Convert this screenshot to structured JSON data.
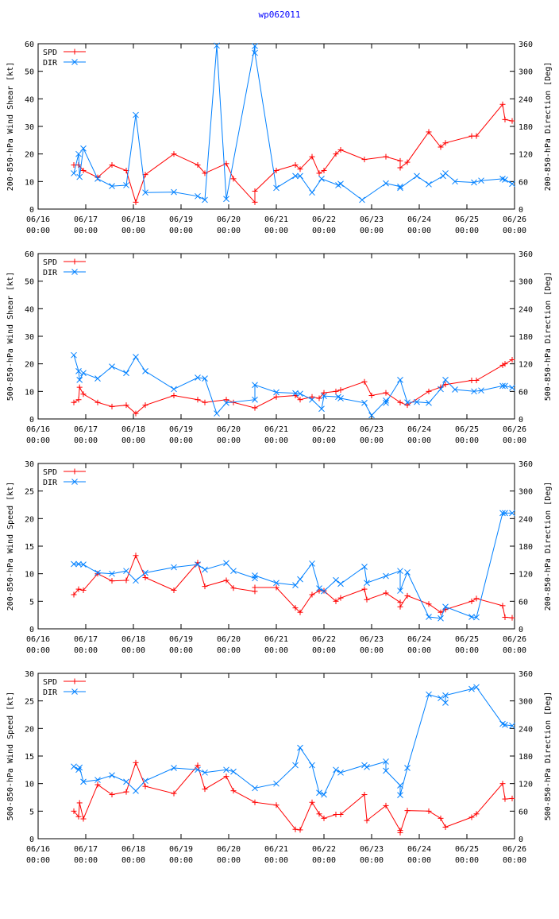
{
  "title": "wp062011",
  "x_axis": {
    "min": 0,
    "max": 10,
    "ticks": [
      {
        "v": 0,
        "date": "06/16",
        "time": "00:00"
      },
      {
        "v": 1,
        "date": "06/17",
        "time": "00:00"
      },
      {
        "v": 2,
        "date": "06/18",
        "time": "00:00"
      },
      {
        "v": 3,
        "date": "06/19",
        "time": "00:00"
      },
      {
        "v": 4,
        "date": "06/20",
        "time": "00:00"
      },
      {
        "v": 5,
        "date": "06/21",
        "time": "00:00"
      },
      {
        "v": 6,
        "date": "06/22",
        "time": "00:00"
      },
      {
        "v": 7,
        "date": "06/23",
        "time": "00:00"
      },
      {
        "v": 8,
        "date": "06/24",
        "time": "00:00"
      },
      {
        "v": 9,
        "date": "06/25",
        "time": "00:00"
      },
      {
        "v": 10,
        "date": "06/26",
        "time": "00:00"
      }
    ]
  },
  "colors": {
    "spd": "#ff0000",
    "dir": "#0080ff"
  },
  "chart_data": [
    {
      "type": "line",
      "ylabel": "200-850-hPa Wind Shear [kt]",
      "y2label": "200-850-hPa Direction [Deg]",
      "ylim": [
        0,
        60
      ],
      "yticks": [
        0,
        10,
        20,
        30,
        40,
        50,
        60
      ],
      "y2lim": [
        0,
        360
      ],
      "y2ticks": [
        0,
        60,
        120,
        180,
        240,
        300,
        360
      ],
      "legend": "top-left",
      "series": [
        {
          "name": "SPD",
          "axis": "left",
          "marker": "plus",
          "color_key": "spd",
          "x": [
            0.75,
            0.85,
            0.95,
            1.25,
            1.55,
            1.85,
            2.05,
            2.25,
            2.85,
            3.35,
            3.5,
            3.95,
            4.1,
            4.55,
            4.55,
            5.0,
            5.4,
            5.5,
            5.75,
            5.9,
            6.0,
            6.25,
            6.35,
            6.85,
            7.3,
            7.6,
            7.6,
            7.75,
            8.2,
            8.45,
            8.55,
            9.1,
            9.2,
            9.75,
            9.8,
            9.95
          ],
          "y": [
            16,
            16,
            14,
            11.5,
            16,
            14,
            2.5,
            12.5,
            20,
            16,
            13,
            16.5,
            11,
            2.5,
            6.5,
            14,
            16,
            14.5,
            19,
            13,
            14,
            20,
            21.5,
            18,
            19,
            17.5,
            15,
            17,
            28,
            22.5,
            24,
            26.5,
            26.5,
            38,
            32.5,
            32
          ]
        },
        {
          "name": "DIR",
          "axis": "right",
          "marker": "cross",
          "color_key": "dir",
          "x": [
            0.75,
            0.85,
            0.87,
            0.95,
            1.25,
            1.55,
            1.85,
            2.05,
            2.25,
            2.85,
            3.35,
            3.5,
            3.75,
            3.95,
            4.55,
            4.55,
            5.0,
            5.4,
            5.5,
            5.75,
            5.95,
            6.3,
            6.35,
            6.8,
            7.3,
            7.6,
            7.6,
            7.95,
            8.2,
            8.5,
            8.55,
            8.75,
            9.15,
            9.3,
            9.75,
            9.8,
            9.95
          ],
          "y": [
            78,
            120,
            70,
            132,
            66,
            50,
            52,
            205,
            36,
            37,
            28,
            20,
            356,
            22,
            355,
            340,
            46,
            72,
            72,
            36,
            66,
            52,
            55,
            20,
            56,
            49,
            46,
            72,
            54,
            72,
            78,
            60,
            58,
            62,
            66,
            64,
            55
          ]
        }
      ]
    },
    {
      "type": "line",
      "ylabel": "500-850-hPa Wind Shear [kt]",
      "y2label": "500-850-hPa Direction [Deg]",
      "ylim": [
        0,
        60
      ],
      "yticks": [
        0,
        10,
        20,
        30,
        40,
        50,
        60
      ],
      "y2lim": [
        0,
        360
      ],
      "y2ticks": [
        0,
        60,
        120,
        180,
        240,
        300,
        360
      ],
      "legend": "top-left",
      "series": [
        {
          "name": "SPD",
          "axis": "left",
          "marker": "plus",
          "color_key": "spd",
          "x": [
            0.75,
            0.85,
            0.87,
            0.95,
            1.25,
            1.55,
            1.85,
            2.05,
            2.25,
            2.85,
            3.35,
            3.5,
            3.95,
            4.1,
            4.55,
            5.0,
            5.4,
            5.5,
            5.75,
            5.9,
            6.0,
            6.25,
            6.35,
            6.85,
            7.0,
            7.3,
            7.6,
            7.75,
            8.2,
            8.45,
            8.55,
            9.1,
            9.2,
            9.75,
            9.8,
            9.95
          ],
          "y": [
            6,
            7,
            11.5,
            9,
            6,
            4.5,
            5,
            2,
            5,
            8.5,
            7,
            6,
            7,
            6,
            4,
            8,
            8.5,
            7,
            8,
            7.5,
            9.5,
            10,
            10.5,
            13.5,
            8.5,
            9.5,
            6,
            5,
            10,
            11.5,
            12.5,
            14,
            14,
            19.5,
            20,
            21.5
          ]
        },
        {
          "name": "DIR",
          "axis": "right",
          "marker": "cross",
          "color_key": "dir",
          "x": [
            0.75,
            0.85,
            0.87,
            0.95,
            1.25,
            1.55,
            1.85,
            2.05,
            2.25,
            2.85,
            3.35,
            3.5,
            3.75,
            3.95,
            4.55,
            4.55,
            5.0,
            5.4,
            5.5,
            5.75,
            5.95,
            6.0,
            6.3,
            6.35,
            6.85,
            7.0,
            7.3,
            7.3,
            7.6,
            7.75,
            7.95,
            8.2,
            8.45,
            8.55,
            8.75,
            9.15,
            9.3,
            9.75,
            9.8,
            9.95
          ],
          "y": [
            139,
            104,
            85,
            100,
            88,
            114,
            100,
            135,
            104,
            65,
            90,
            88,
            12,
            35,
            42,
            74,
            58,
            56,
            55,
            42,
            22,
            50,
            48,
            45,
            35,
            8,
            40,
            35,
            85,
            36,
            37,
            35,
            65,
            85,
            64,
            60,
            62,
            72,
            72,
            68
          ]
        }
      ]
    },
    {
      "type": "line",
      "ylabel": "200-850-hPa Wind Speed [kt]",
      "y2label": "200-850-hPa Direction [Deg]",
      "ylim": [
        0,
        30
      ],
      "yticks": [
        0,
        5,
        10,
        15,
        20,
        25,
        30
      ],
      "y2lim": [
        0,
        360
      ],
      "y2ticks": [
        0,
        60,
        120,
        180,
        240,
        300,
        360
      ],
      "legend": "top-left",
      "series": [
        {
          "name": "SPD",
          "axis": "left",
          "marker": "plus",
          "color_key": "spd",
          "x": [
            0.75,
            0.85,
            0.95,
            1.25,
            1.55,
            1.85,
            2.05,
            2.25,
            2.85,
            3.35,
            3.5,
            3.95,
            4.1,
            4.55,
            4.55,
            5.0,
            5.4,
            5.5,
            5.75,
            5.9,
            6.0,
            6.25,
            6.35,
            6.85,
            6.9,
            7.3,
            7.6,
            7.6,
            7.75,
            8.2,
            8.45,
            8.55,
            9.1,
            9.2,
            9.75,
            9.8,
            9.95
          ],
          "y": [
            6.2,
            7.2,
            7,
            10,
            8.7,
            8.8,
            13.3,
            9.3,
            7,
            12,
            7.7,
            8.8,
            7.4,
            6.8,
            7.5,
            7.5,
            3.8,
            3,
            6.2,
            6.9,
            6.9,
            5,
            5.6,
            7.2,
            5.3,
            6.5,
            4.8,
            4,
            6,
            4.5,
            3,
            3.5,
            5,
            5.5,
            4.2,
            2.1,
            2
          ]
        },
        {
          "name": "DIR",
          "axis": "right",
          "marker": "cross",
          "color_key": "dir",
          "x": [
            0.75,
            0.85,
            0.95,
            1.25,
            1.55,
            1.85,
            2.05,
            2.25,
            2.85,
            3.35,
            3.5,
            3.95,
            4.1,
            4.55,
            4.55,
            5.0,
            5.4,
            5.5,
            5.75,
            5.9,
            6.0,
            6.25,
            6.35,
            6.85,
            6.9,
            7.3,
            7.6,
            7.6,
            7.75,
            8.2,
            8.45,
            8.55,
            9.1,
            9.2,
            9.75,
            9.8,
            9.95
          ],
          "y": [
            141,
            141,
            140,
            122,
            120,
            126,
            105,
            122,
            134,
            140,
            129,
            143,
            126,
            110,
            116,
            100,
            95,
            108,
            142,
            88,
            82,
            106,
            98,
            135,
            100,
            115,
            126,
            83,
            123,
            26,
            23,
            48,
            26,
            25,
            252,
            252,
            252
          ]
        }
      ]
    },
    {
      "type": "line",
      "ylabel": "500-850-hPa Wind Speed [kt]",
      "y2label": "500-850-hPa Direction [Deg]",
      "ylim": [
        0,
        30
      ],
      "yticks": [
        0,
        5,
        10,
        15,
        20,
        25,
        30
      ],
      "y2lim": [
        0,
        360
      ],
      "y2ticks": [
        0,
        60,
        120,
        180,
        240,
        300,
        360
      ],
      "legend": "top-left",
      "series": [
        {
          "name": "SPD",
          "axis": "left",
          "marker": "plus",
          "color_key": "spd",
          "x": [
            0.75,
            0.85,
            0.87,
            0.95,
            1.25,
            1.55,
            1.85,
            2.05,
            2.25,
            2.85,
            3.35,
            3.5,
            3.95,
            4.1,
            4.55,
            5.0,
            5.4,
            5.5,
            5.75,
            5.9,
            6.0,
            6.25,
            6.35,
            6.85,
            6.9,
            7.3,
            7.6,
            7.6,
            7.75,
            8.2,
            8.45,
            8.55,
            9.1,
            9.2,
            9.75,
            9.8,
            9.95
          ],
          "y": [
            5,
            4,
            6.5,
            3.6,
            9.8,
            8,
            8.5,
            13.8,
            9.5,
            8.2,
            13.3,
            9,
            11.3,
            8.7,
            6.6,
            6.1,
            1.7,
            1.6,
            6.6,
            4.5,
            3.7,
            4.4,
            4.4,
            8,
            3.3,
            6,
            1.5,
            1.1,
            5.1,
            5,
            3.7,
            2.1,
            3.9,
            4.5,
            10,
            7.2,
            7.3
          ]
        },
        {
          "name": "DIR",
          "axis": "right",
          "marker": "cross",
          "color_key": "dir",
          "x": [
            0.75,
            0.85,
            0.87,
            0.95,
            1.25,
            1.55,
            1.85,
            2.05,
            2.25,
            2.85,
            3.35,
            3.5,
            3.95,
            4.1,
            4.55,
            5.0,
            5.4,
            5.5,
            5.75,
            5.9,
            6.0,
            6.25,
            6.35,
            6.85,
            6.9,
            7.3,
            7.3,
            7.6,
            7.6,
            7.75,
            8.2,
            8.45,
            8.55,
            8.55,
            9.1,
            9.2,
            9.75,
            9.8,
            9.95
          ],
          "y": [
            157,
            150,
            155,
            124,
            128,
            138,
            124,
            104,
            126,
            154,
            150,
            144,
            150,
            146,
            110,
            120,
            160,
            198,
            160,
            100,
            96,
            150,
            144,
            160,
            156,
            168,
            148,
            116,
            95,
            154,
            314,
            306,
            296,
            312,
            326,
            330,
            250,
            248,
            246
          ]
        }
      ]
    }
  ]
}
